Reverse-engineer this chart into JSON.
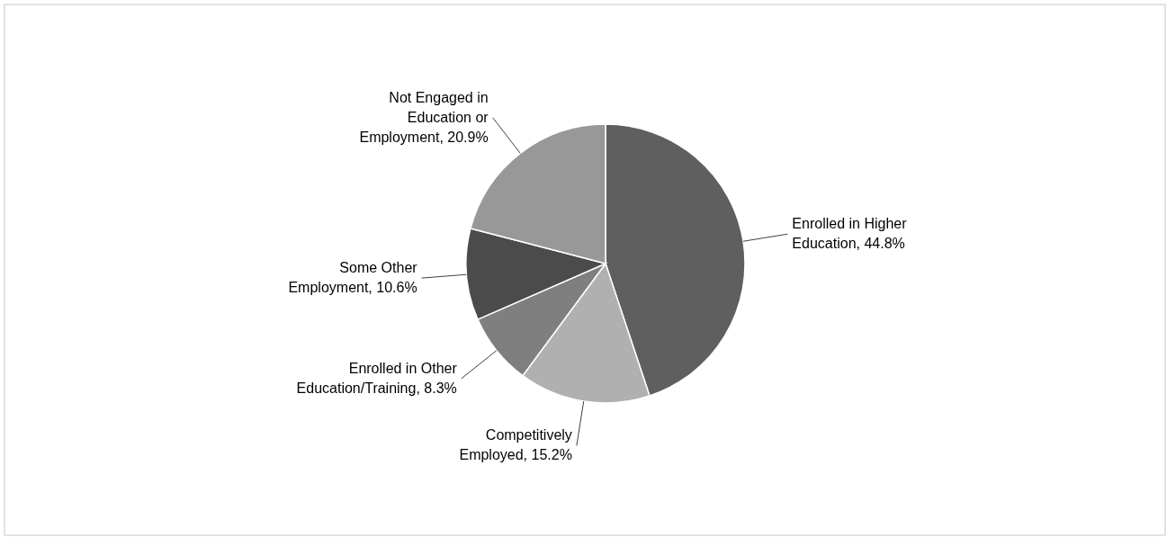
{
  "chart_data": {
    "type": "pie",
    "categories": [
      "Enrolled in Higher Education",
      "Competitively Employed",
      "Enrolled in Other Education/Training",
      "Some Other Employment",
      "Not Engaged in Education or Employment"
    ],
    "values": [
      44.8,
      15.2,
      8.3,
      10.6,
      20.9
    ],
    "value_labels": [
      "44.8%",
      "15.2%",
      "8.3%",
      "10.6%",
      "20.9%"
    ],
    "colors": [
      "#5f5f5f",
      "#b0b0b0",
      "#7f7f7f",
      "#4b4b4b",
      "#989898"
    ],
    "legend": false
  }
}
